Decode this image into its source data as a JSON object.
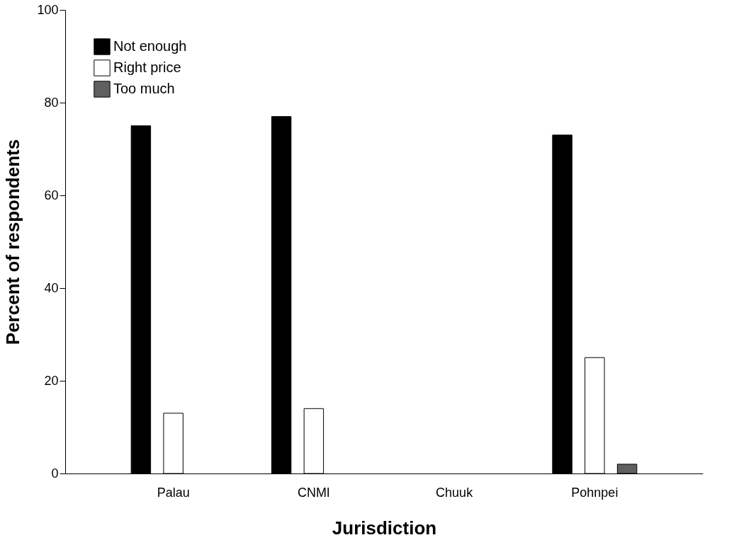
{
  "chart_data": {
    "type": "bar",
    "xlabel": "Jurisdiction",
    "ylabel": "Percent of respondents",
    "categories": [
      "Palau",
      "CNMI",
      "Chuuk",
      "Pohnpei"
    ],
    "series": [
      {
        "name": "Not enough",
        "color": "#000000",
        "values": [
          75,
          77,
          null,
          73
        ]
      },
      {
        "name": "Right price",
        "color": "#ffffff",
        "values": [
          13,
          14,
          null,
          25
        ]
      },
      {
        "name": "Too much",
        "color": "#606060",
        "values": [
          null,
          null,
          null,
          2
        ]
      }
    ],
    "ylim": [
      0,
      100
    ],
    "yticks": [
      0,
      20,
      40,
      60,
      80,
      100
    ],
    "grid": false,
    "legend": "top left"
  }
}
